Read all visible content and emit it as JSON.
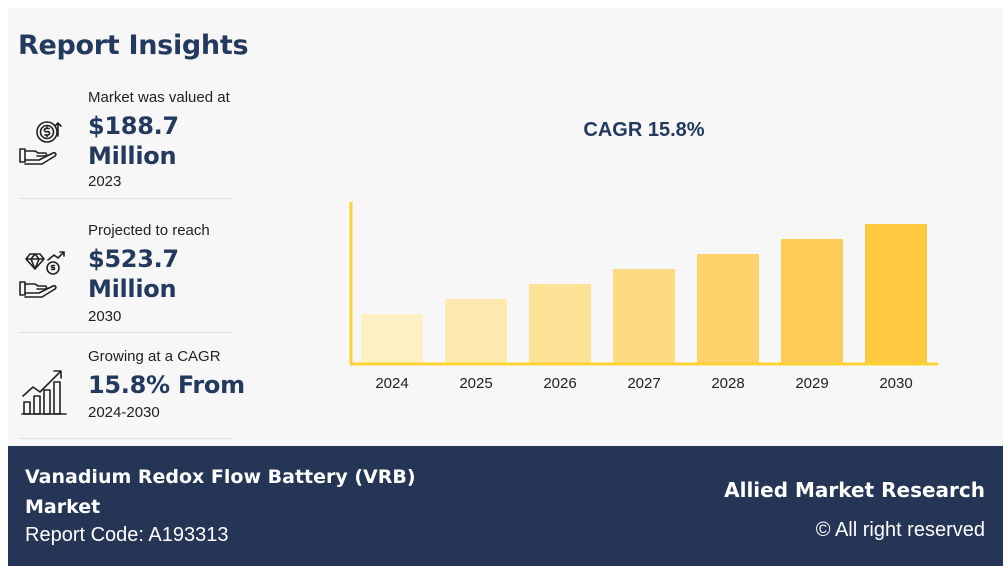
{
  "header": {
    "title": "Report Insights"
  },
  "insights": [
    {
      "label": "Market was valued at",
      "value": "$188.7 Million",
      "year": "2023",
      "icon": "money-hand-icon"
    },
    {
      "label": "Projected to reach",
      "value": "$523.7 Million",
      "year": "2030",
      "icon": "diamond-hand-icon"
    },
    {
      "label": "Growing at a CAGR",
      "value": "15.8% From",
      "year": "2024-2030",
      "icon": "growth-chart-icon"
    }
  ],
  "chart_data": {
    "type": "bar",
    "title": "CAGR 15.8%",
    "categories": [
      "2024",
      "2025",
      "2026",
      "2027",
      "2028",
      "2029",
      "2030"
    ],
    "values": [
      50,
      65,
      80,
      95,
      110,
      125,
      140
    ],
    "colors": [
      "#fdf0c2",
      "#fde9ad",
      "#fde297",
      "#fddb82",
      "#fdd46c",
      "#fdcd57",
      "#fdc93f"
    ],
    "axis_color": "#fdd233",
    "ylim": [
      0,
      160
    ],
    "grid": false,
    "legend": false
  },
  "footer": {
    "market_name": "Vanadium Redox Flow Battery (VRB) Market",
    "report_code": "Report Code: A193313",
    "brand": "Allied Market Research",
    "rights": "© All right reserved"
  }
}
